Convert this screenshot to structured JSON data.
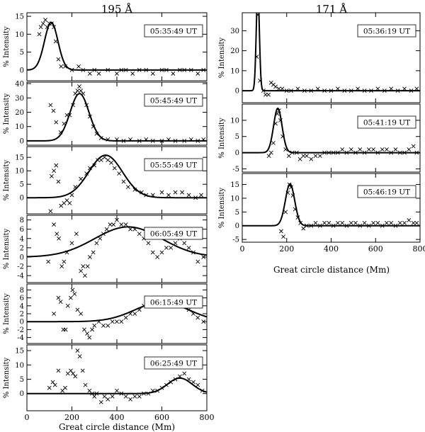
{
  "figure": {
    "col_titles": [
      "195 Å",
      "171 Å"
    ],
    "xlabel": "Great circle distance (Mm)",
    "ylabel": "% Intensity",
    "x_ticks": [
      "0",
      "200",
      "400",
      "600",
      "800"
    ]
  },
  "chart_data": [
    {
      "type": "scatter",
      "column": "195 Å",
      "label": "05:35:49 UT",
      "xlim": [
        0,
        800
      ],
      "ylim": [
        -3,
        16
      ],
      "yticks": [
        0,
        5,
        10,
        15
      ],
      "fit": {
        "A": 13.3,
        "mu": 108,
        "sigma": 30
      },
      "points": [
        [
          55,
          10
        ],
        [
          62,
          12
        ],
        [
          72,
          13
        ],
        [
          82,
          14
        ],
        [
          90,
          12
        ],
        [
          100,
          13
        ],
        [
          110,
          13
        ],
        [
          120,
          12
        ],
        [
          128,
          8
        ],
        [
          140,
          3
        ],
        [
          152,
          1
        ],
        [
          170,
          1
        ],
        [
          200,
          0
        ],
        [
          230,
          1
        ],
        [
          250,
          0
        ],
        [
          280,
          -1
        ],
        [
          300,
          0
        ],
        [
          320,
          -1
        ],
        [
          360,
          0
        ],
        [
          400,
          -1
        ],
        [
          420,
          0
        ],
        [
          440,
          0
        ],
        [
          470,
          -1
        ],
        [
          500,
          0
        ],
        [
          530,
          0
        ],
        [
          560,
          -1
        ],
        [
          600,
          0
        ],
        [
          620,
          0
        ],
        [
          650,
          -1
        ],
        [
          680,
          0
        ],
        [
          700,
          0
        ],
        [
          730,
          0
        ],
        [
          760,
          -1
        ],
        [
          785,
          0
        ]
      ]
    },
    {
      "type": "scatter",
      "column": "195 Å",
      "label": "05:45:49 UT",
      "xlim": [
        0,
        800
      ],
      "ylim": [
        -3,
        41
      ],
      "yticks": [
        0,
        10,
        20,
        30,
        40
      ],
      "fit": {
        "A": 33,
        "mu": 234,
        "sigma": 42
      },
      "points": [
        [
          105,
          25
        ],
        [
          118,
          21
        ],
        [
          130,
          13
        ],
        [
          150,
          6
        ],
        [
          165,
          12
        ],
        [
          178,
          18
        ],
        [
          190,
          18
        ],
        [
          205,
          25
        ],
        [
          215,
          33
        ],
        [
          225,
          35
        ],
        [
          233,
          38
        ],
        [
          240,
          35
        ],
        [
          250,
          33
        ],
        [
          265,
          25
        ],
        [
          280,
          17
        ],
        [
          295,
          10
        ],
        [
          310,
          5
        ],
        [
          330,
          2
        ],
        [
          360,
          1
        ],
        [
          400,
          1
        ],
        [
          430,
          0
        ],
        [
          460,
          1
        ],
        [
          500,
          0
        ],
        [
          530,
          1
        ],
        [
          560,
          0
        ],
        [
          600,
          0
        ],
        [
          630,
          1
        ],
        [
          660,
          0
        ],
        [
          700,
          0
        ],
        [
          730,
          1
        ],
        [
          760,
          0
        ],
        [
          785,
          1
        ]
      ]
    },
    {
      "type": "scatter",
      "column": "195 Å",
      "label": "05:55:49 UT",
      "xlim": [
        0,
        800
      ],
      "ylim": [
        -6,
        19
      ],
      "yticks": [
        0,
        5,
        10,
        15
      ],
      "fit": {
        "A": 15.8,
        "mu": 350,
        "sigma": 75
      },
      "points": [
        [
          105,
          -5
        ],
        [
          110,
          8
        ],
        [
          120,
          10
        ],
        [
          130,
          12
        ],
        [
          140,
          6
        ],
        [
          152,
          -3
        ],
        [
          165,
          -2
        ],
        [
          178,
          -1
        ],
        [
          190,
          -2
        ],
        [
          200,
          1
        ],
        [
          215,
          4
        ],
        [
          240,
          7
        ],
        [
          265,
          9
        ],
        [
          280,
          11
        ],
        [
          300,
          12
        ],
        [
          315,
          14
        ],
        [
          330,
          14
        ],
        [
          345,
          15
        ],
        [
          360,
          14
        ],
        [
          375,
          13
        ],
        [
          390,
          11
        ],
        [
          410,
          9
        ],
        [
          430,
          6
        ],
        [
          450,
          4
        ],
        [
          480,
          3
        ],
        [
          510,
          2
        ],
        [
          530,
          1
        ],
        [
          560,
          1
        ],
        [
          600,
          2
        ],
        [
          630,
          1
        ],
        [
          660,
          2
        ],
        [
          690,
          2
        ],
        [
          720,
          1
        ],
        [
          750,
          0
        ],
        [
          775,
          1
        ]
      ]
    },
    {
      "type": "scatter",
      "column": "195 Å",
      "label": "06:05:49 UT",
      "xlim": [
        0,
        800
      ],
      "ylim": [
        -5.5,
        9
      ],
      "yticks": [
        -4,
        -2,
        0,
        2,
        4,
        6,
        8
      ],
      "fit": {
        "A": 6.5,
        "mu": 450,
        "sigma": 150
      },
      "points": [
        [
          95,
          -1
        ],
        [
          120,
          7
        ],
        [
          133,
          5
        ],
        [
          142,
          4
        ],
        [
          155,
          -2
        ],
        [
          165,
          -1
        ],
        [
          178,
          1
        ],
        [
          200,
          3
        ],
        [
          220,
          5
        ],
        [
          240,
          -3
        ],
        [
          250,
          -2
        ],
        [
          258,
          -4
        ],
        [
          270,
          -2
        ],
        [
          280,
          0
        ],
        [
          295,
          1
        ],
        [
          310,
          3
        ],
        [
          325,
          4
        ],
        [
          340,
          5
        ],
        [
          355,
          6
        ],
        [
          370,
          7
        ],
        [
          385,
          7
        ],
        [
          400,
          8
        ],
        [
          420,
          7
        ],
        [
          440,
          7
        ],
        [
          460,
          6
        ],
        [
          480,
          6
        ],
        [
          500,
          5
        ],
        [
          520,
          4
        ],
        [
          540,
          3
        ],
        [
          560,
          1
        ],
        [
          580,
          0
        ],
        [
          600,
          1
        ],
        [
          620,
          2
        ],
        [
          640,
          2
        ],
        [
          660,
          3
        ],
        [
          680,
          4
        ],
        [
          700,
          3
        ],
        [
          720,
          2
        ],
        [
          740,
          1
        ],
        [
          760,
          -1
        ],
        [
          785,
          0
        ]
      ]
    },
    {
      "type": "scatter",
      "column": "195 Å",
      "label": "06:15:49 UT",
      "xlim": [
        0,
        800
      ],
      "ylim": [
        -5.5,
        9.5
      ],
      "yticks": [
        -4,
        -2,
        0,
        2,
        4,
        6,
        8
      ],
      "fit": {
        "A": 4.9,
        "mu": 600,
        "sigma": 120
      },
      "points": [
        [
          120,
          2
        ],
        [
          140,
          6
        ],
        [
          150,
          5
        ],
        [
          162,
          -2
        ],
        [
          172,
          -2
        ],
        [
          182,
          4
        ],
        [
          195,
          6
        ],
        [
          203,
          8
        ],
        [
          212,
          7
        ],
        [
          225,
          3
        ],
        [
          240,
          2
        ],
        [
          255,
          -2
        ],
        [
          268,
          -3
        ],
        [
          278,
          -4
        ],
        [
          290,
          -2
        ],
        [
          300,
          -1
        ],
        [
          320,
          0
        ],
        [
          340,
          -1
        ],
        [
          360,
          -1
        ],
        [
          380,
          0
        ],
        [
          400,
          0
        ],
        [
          420,
          0
        ],
        [
          440,
          1
        ],
        [
          460,
          2
        ],
        [
          480,
          2
        ],
        [
          500,
          3
        ],
        [
          520,
          4
        ],
        [
          540,
          5
        ],
        [
          560,
          5
        ],
        [
          580,
          4
        ],
        [
          600,
          4
        ],
        [
          620,
          4
        ],
        [
          640,
          5
        ],
        [
          660,
          5
        ],
        [
          680,
          5
        ],
        [
          700,
          4
        ],
        [
          720,
          3
        ],
        [
          740,
          2
        ],
        [
          760,
          1
        ],
        [
          785,
          0
        ]
      ]
    },
    {
      "type": "scatter",
      "column": "195 Å",
      "label": "06:25:49 UT",
      "xlim": [
        0,
        800
      ],
      "ylim": [
        -6,
        17
      ],
      "yticks": [
        0,
        5,
        10,
        15
      ],
      "fit": {
        "A": 5.4,
        "mu": 680,
        "sigma": 55
      },
      "points": [
        [
          100,
          2
        ],
        [
          115,
          4
        ],
        [
          125,
          3
        ],
        [
          140,
          8
        ],
        [
          158,
          1
        ],
        [
          170,
          2
        ],
        [
          182,
          7
        ],
        [
          195,
          8
        ],
        [
          205,
          7
        ],
        [
          215,
          6
        ],
        [
          225,
          15
        ],
        [
          235,
          13
        ],
        [
          248,
          8
        ],
        [
          260,
          3
        ],
        [
          278,
          1
        ],
        [
          290,
          0
        ],
        [
          300,
          -1
        ],
        [
          310,
          0
        ],
        [
          330,
          -3
        ],
        [
          345,
          -1
        ],
        [
          360,
          -2
        ],
        [
          380,
          -1
        ],
        [
          400,
          1
        ],
        [
          420,
          0
        ],
        [
          440,
          -1
        ],
        [
          460,
          -2
        ],
        [
          480,
          -1
        ],
        [
          500,
          -1
        ],
        [
          520,
          0
        ],
        [
          540,
          0
        ],
        [
          560,
          1
        ],
        [
          580,
          1
        ],
        [
          600,
          2
        ],
        [
          620,
          3
        ],
        [
          640,
          4
        ],
        [
          660,
          5
        ],
        [
          680,
          6
        ],
        [
          700,
          7
        ],
        [
          720,
          5
        ],
        [
          740,
          4
        ],
        [
          760,
          3
        ],
        [
          780,
          1
        ]
      ]
    },
    {
      "type": "scatter",
      "column": "171 Å",
      "label": "05:36:19 UT",
      "xlim": [
        0,
        800
      ],
      "ylim": [
        -6,
        39
      ],
      "yticks": [
        0,
        10,
        20,
        30
      ],
      "fit": {
        "A": 50,
        "mu": 70,
        "sigma": 7
      },
      "points": [
        [
          65,
          17
        ],
        [
          70,
          38
        ],
        [
          80,
          5
        ],
        [
          95,
          0
        ],
        [
          105,
          -2
        ],
        [
          118,
          -2
        ],
        [
          130,
          4
        ],
        [
          140,
          3
        ],
        [
          150,
          2
        ],
        [
          165,
          1
        ],
        [
          180,
          1
        ],
        [
          200,
          0
        ],
        [
          220,
          0
        ],
        [
          250,
          1
        ],
        [
          280,
          0
        ],
        [
          310,
          0
        ],
        [
          340,
          1
        ],
        [
          370,
          0
        ],
        [
          400,
          0
        ],
        [
          430,
          1
        ],
        [
          460,
          0
        ],
        [
          490,
          0
        ],
        [
          520,
          1
        ],
        [
          550,
          0
        ],
        [
          580,
          0
        ],
        [
          610,
          1
        ],
        [
          640,
          0
        ],
        [
          670,
          1
        ],
        [
          700,
          0
        ],
        [
          730,
          1
        ],
        [
          760,
          0
        ],
        [
          785,
          1
        ]
      ]
    },
    {
      "type": "scatter",
      "column": "171 Å",
      "label": "05:41:19 UT",
      "xlim": [
        0,
        800
      ],
      "ylim": [
        -6,
        15
      ],
      "yticks": [
        -5,
        0,
        5,
        10
      ],
      "fit": {
        "A": 13.7,
        "mu": 160,
        "sigma": 19
      },
      "points": [
        [
          120,
          -1
        ],
        [
          130,
          0
        ],
        [
          140,
          3
        ],
        [
          150,
          9
        ],
        [
          158,
          12
        ],
        [
          165,
          13
        ],
        [
          172,
          10
        ],
        [
          182,
          5
        ],
        [
          195,
          1
        ],
        [
          210,
          -1
        ],
        [
          225,
          0
        ],
        [
          245,
          0
        ],
        [
          260,
          -2
        ],
        [
          275,
          -1
        ],
        [
          290,
          -1
        ],
        [
          310,
          -2
        ],
        [
          330,
          -1
        ],
        [
          350,
          -1
        ],
        [
          370,
          0
        ],
        [
          390,
          0
        ],
        [
          410,
          0
        ],
        [
          430,
          0
        ],
        [
          450,
          1
        ],
        [
          470,
          0
        ],
        [
          490,
          1
        ],
        [
          510,
          0
        ],
        [
          530,
          1
        ],
        [
          550,
          0
        ],
        [
          570,
          1
        ],
        [
          590,
          1
        ],
        [
          610,
          0
        ],
        [
          630,
          1
        ],
        [
          650,
          1
        ],
        [
          670,
          0
        ],
        [
          690,
          1
        ],
        [
          710,
          0
        ],
        [
          730,
          0
        ],
        [
          750,
          1
        ],
        [
          770,
          2
        ],
        [
          785,
          0
        ]
      ]
    },
    {
      "type": "scatter",
      "column": "171 Å",
      "label": "05:46:19 UT",
      "xlim": [
        0,
        800
      ],
      "ylim": [
        -6,
        19
      ],
      "yticks": [
        -5,
        0,
        5,
        10,
        15
      ],
      "fit": {
        "A": 15.2,
        "mu": 215,
        "sigma": 21
      },
      "points": [
        [
          175,
          -2
        ],
        [
          185,
          -4
        ],
        [
          195,
          5
        ],
        [
          205,
          12
        ],
        [
          212,
          15
        ],
        [
          220,
          14
        ],
        [
          228,
          11
        ],
        [
          238,
          6
        ],
        [
          250,
          3
        ],
        [
          262,
          1
        ],
        [
          275,
          -1
        ],
        [
          290,
          0
        ],
        [
          310,
          0
        ],
        [
          330,
          1
        ],
        [
          350,
          0
        ],
        [
          370,
          1
        ],
        [
          390,
          1
        ],
        [
          410,
          0
        ],
        [
          430,
          1
        ],
        [
          450,
          1
        ],
        [
          470,
          0
        ],
        [
          490,
          1
        ],
        [
          510,
          1
        ],
        [
          530,
          0
        ],
        [
          550,
          1
        ],
        [
          570,
          0
        ],
        [
          590,
          1
        ],
        [
          610,
          1
        ],
        [
          630,
          0
        ],
        [
          650,
          1
        ],
        [
          670,
          1
        ],
        [
          690,
          0
        ],
        [
          710,
          1
        ],
        [
          730,
          1
        ],
        [
          750,
          2
        ],
        [
          770,
          1
        ],
        [
          785,
          1
        ]
      ]
    }
  ]
}
